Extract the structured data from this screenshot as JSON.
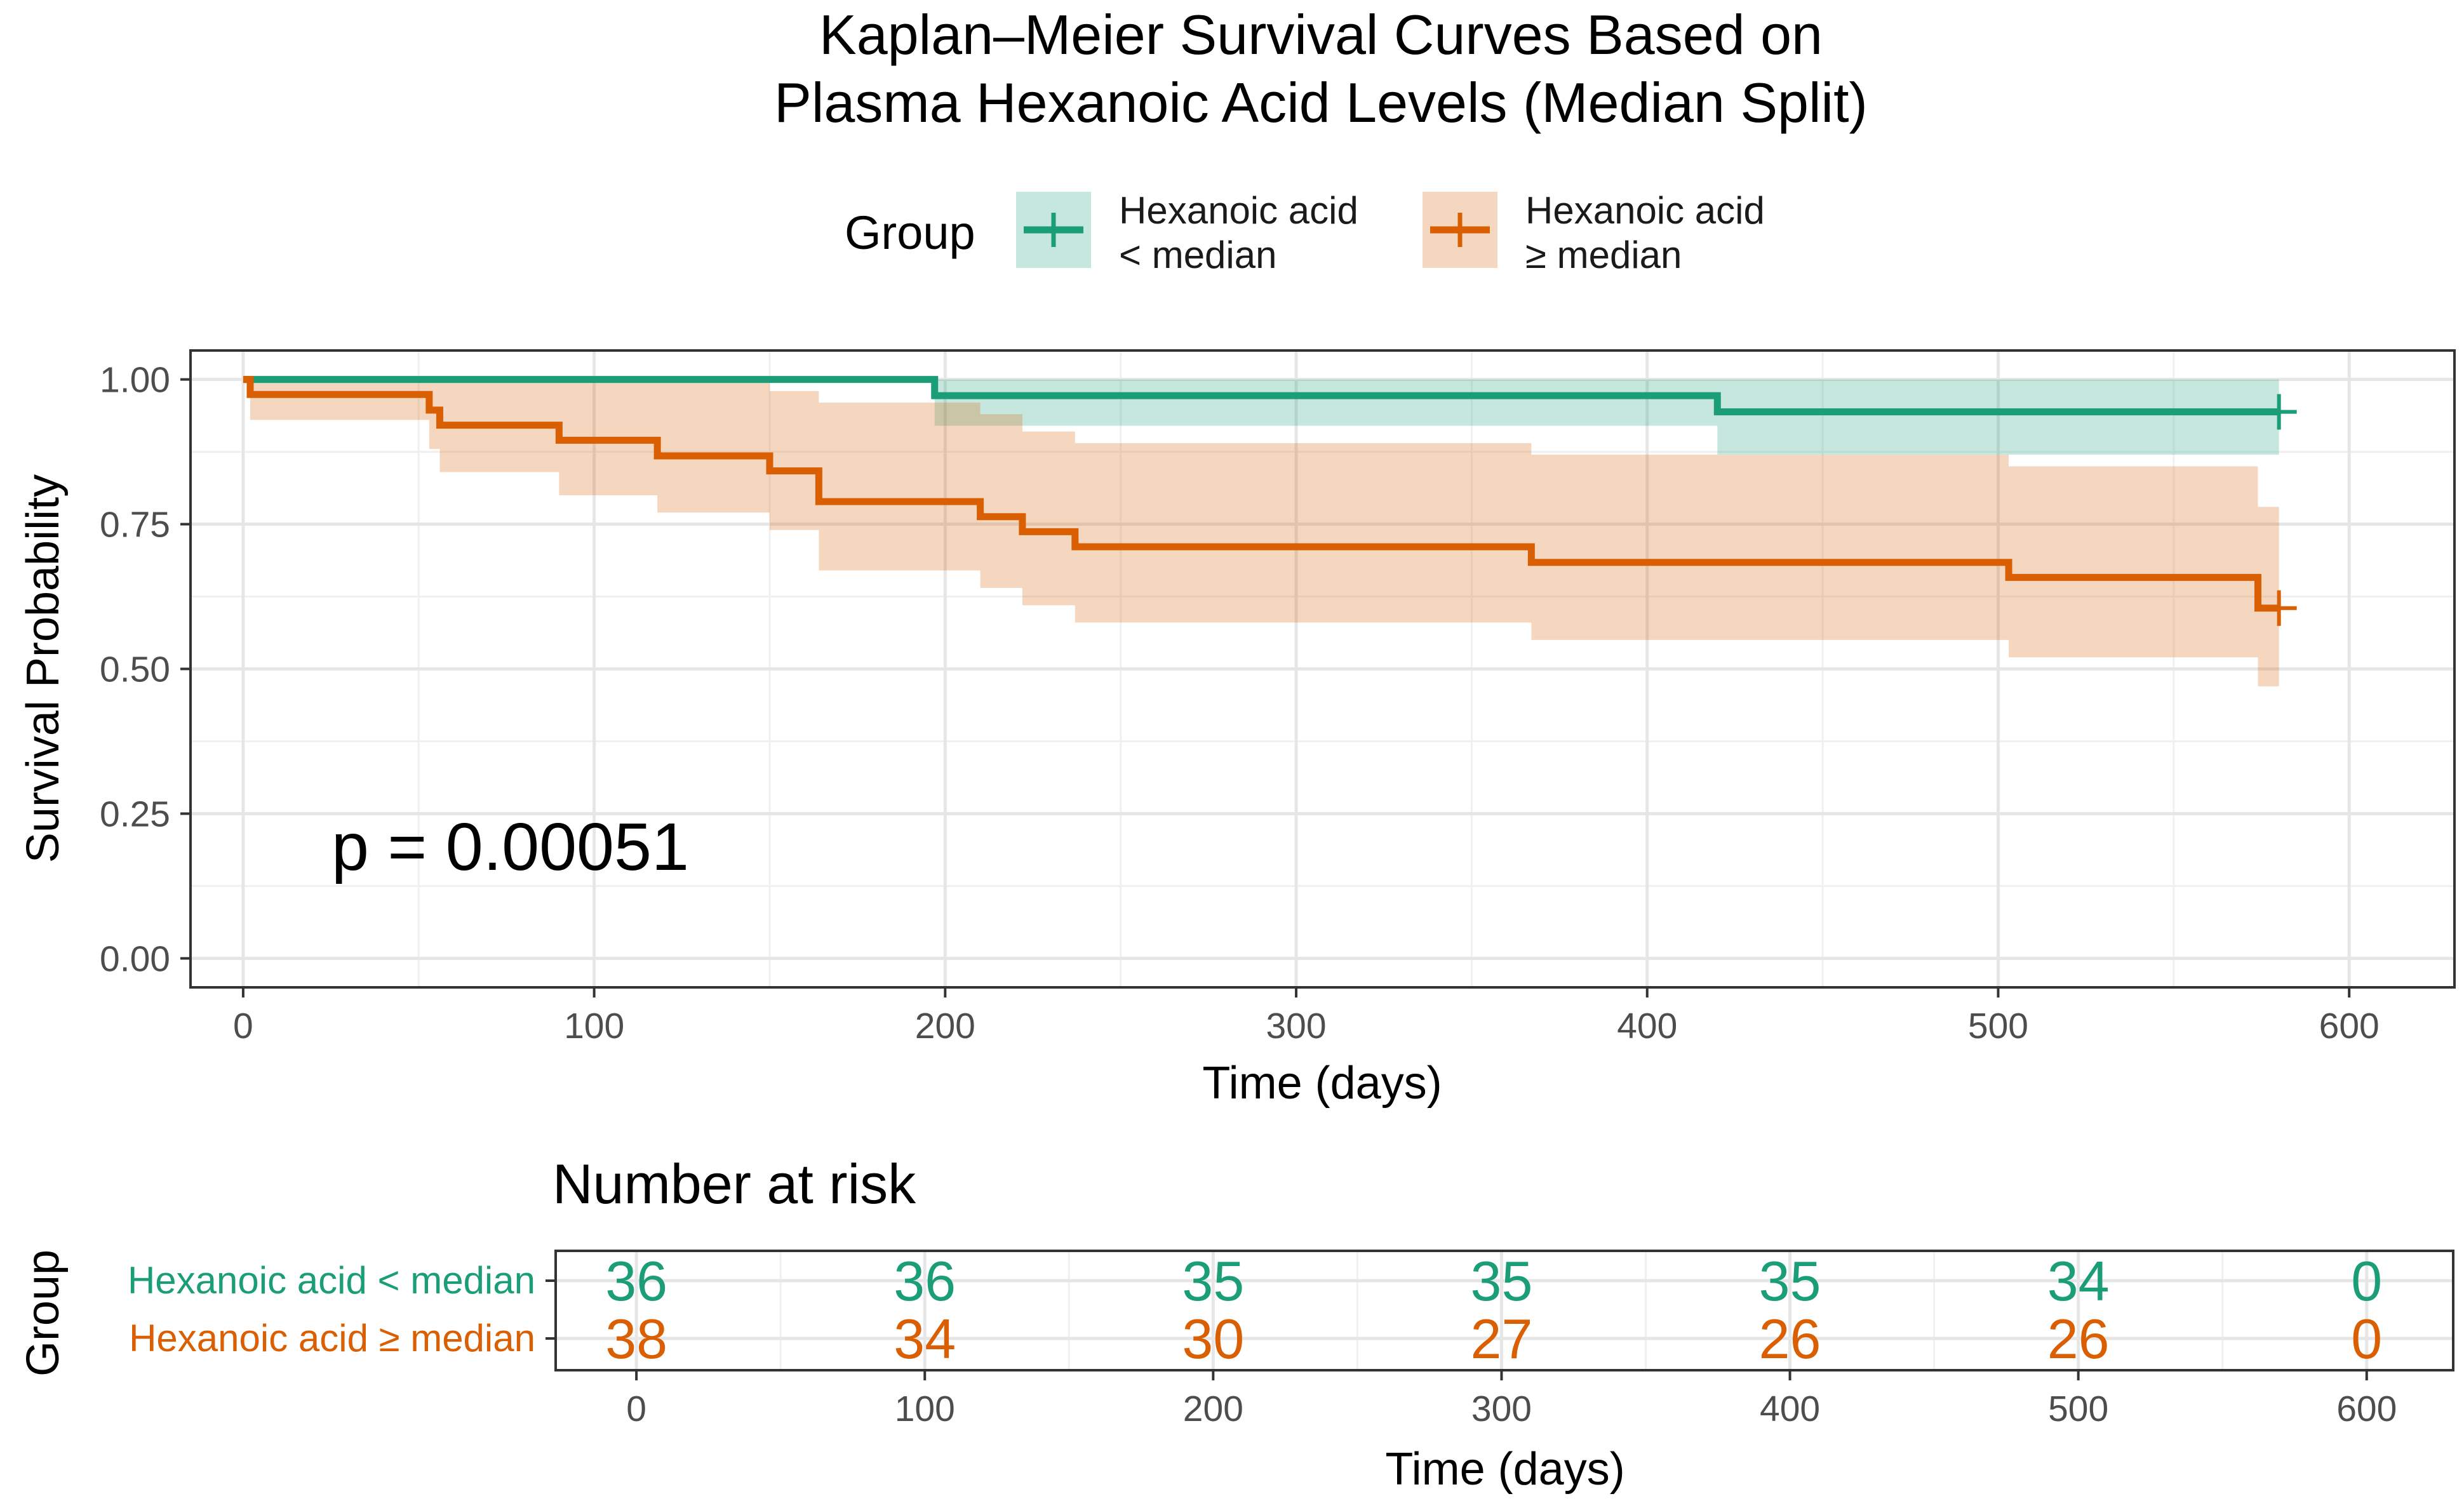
{
  "chart_data": [
    {
      "type": "line",
      "subtype": "kaplan-meier",
      "title": [
        "Kaplan–Meier Survival Curves Based on",
        "Plasma Hexanoic Acid Levels (Median Split)"
      ],
      "legend": {
        "title": "Group",
        "placement": "top",
        "entries": [
          {
            "label": [
              "Hexanoic acid",
              "< median"
            ],
            "color": "#1b9e77"
          },
          {
            "label": [
              "Hexanoic acid",
              "≥ median"
            ],
            "color": "#d95f02"
          }
        ]
      },
      "xlabel": "Time (days)",
      "ylabel": "Survival Probability",
      "xlim": [
        -15,
        630
      ],
      "ylim": [
        -0.05,
        1.05
      ],
      "x_ticks": [
        0,
        100,
        200,
        300,
        400,
        500,
        600
      ],
      "x_tick_labels": [
        "0",
        "100",
        "200",
        "300",
        "400",
        "500",
        "600"
      ],
      "y_ticks": [
        0,
        0.25,
        0.5,
        0.75,
        1
      ],
      "y_tick_labels": [
        "0.00",
        "0.25",
        "0.50",
        "0.75",
        "1.00"
      ],
      "grid": true,
      "annotation": "p = 0.00051",
      "series": [
        {
          "name": "Hexanoic acid < median",
          "color": "#1b9e77",
          "steps": [
            [
              0,
              1.0
            ],
            [
              197,
              0.972
            ],
            [
              420,
              0.944
            ],
            [
              580,
              0.944
            ]
          ],
          "ci_band": [
            [
              0,
              1.0,
              1.0
            ],
            [
              197,
              0.92,
              1.0
            ],
            [
              420,
              0.87,
              1.0
            ],
            [
              580,
              0.87,
              1.0
            ]
          ],
          "censored": [
            [
              580,
              0.944
            ]
          ]
        },
        {
          "name": "Hexanoic acid ≥ median",
          "color": "#d95f02",
          "steps": [
            [
              0,
              1.0
            ],
            [
              2,
              0.974
            ],
            [
              53,
              0.947
            ],
            [
              56,
              0.921
            ],
            [
              90,
              0.895
            ],
            [
              118,
              0.868
            ],
            [
              150,
              0.842
            ],
            [
              164,
              0.789
            ],
            [
              210,
              0.763
            ],
            [
              222,
              0.737
            ],
            [
              237,
              0.711
            ],
            [
              367,
              0.684
            ],
            [
              503,
              0.658
            ],
            [
              574,
              0.605
            ],
            [
              580,
              0.605
            ]
          ],
          "ci_band": [
            [
              0,
              1.0,
              1.0
            ],
            [
              2,
              0.93,
              1.0
            ],
            [
              53,
              0.88,
              1.0
            ],
            [
              56,
              0.84,
              1.0
            ],
            [
              90,
              0.8,
              1.0
            ],
            [
              118,
              0.77,
              1.0
            ],
            [
              150,
              0.74,
              0.98
            ],
            [
              164,
              0.67,
              0.96
            ],
            [
              210,
              0.64,
              0.94
            ],
            [
              222,
              0.61,
              0.91
            ],
            [
              237,
              0.58,
              0.89
            ],
            [
              367,
              0.55,
              0.87
            ],
            [
              503,
              0.52,
              0.85
            ],
            [
              574,
              0.47,
              0.78
            ],
            [
              580,
              0.47,
              0.78
            ]
          ],
          "censored": [
            [
              580,
              0.605
            ]
          ]
        }
      ]
    },
    {
      "type": "table",
      "title": "Number at risk",
      "ylabel": "Group",
      "xlabel": "Time (days)",
      "xlim": [
        -28,
        630
      ],
      "x_ticks": [
        0,
        100,
        200,
        300,
        400,
        500,
        600
      ],
      "x_tick_labels": [
        "0",
        "100",
        "200",
        "300",
        "400",
        "500",
        "600"
      ],
      "grid": true,
      "rows": [
        {
          "label": "Hexanoic acid < median",
          "color": "#1b9e77",
          "values": [
            "36",
            "36",
            "35",
            "35",
            "35",
            "34",
            "0"
          ]
        },
        {
          "label": "Hexanoic acid ≥ median",
          "color": "#d95f02",
          "values": [
            "38",
            "34",
            "30",
            "27",
            "26",
            "26",
            "0"
          ]
        }
      ]
    }
  ]
}
